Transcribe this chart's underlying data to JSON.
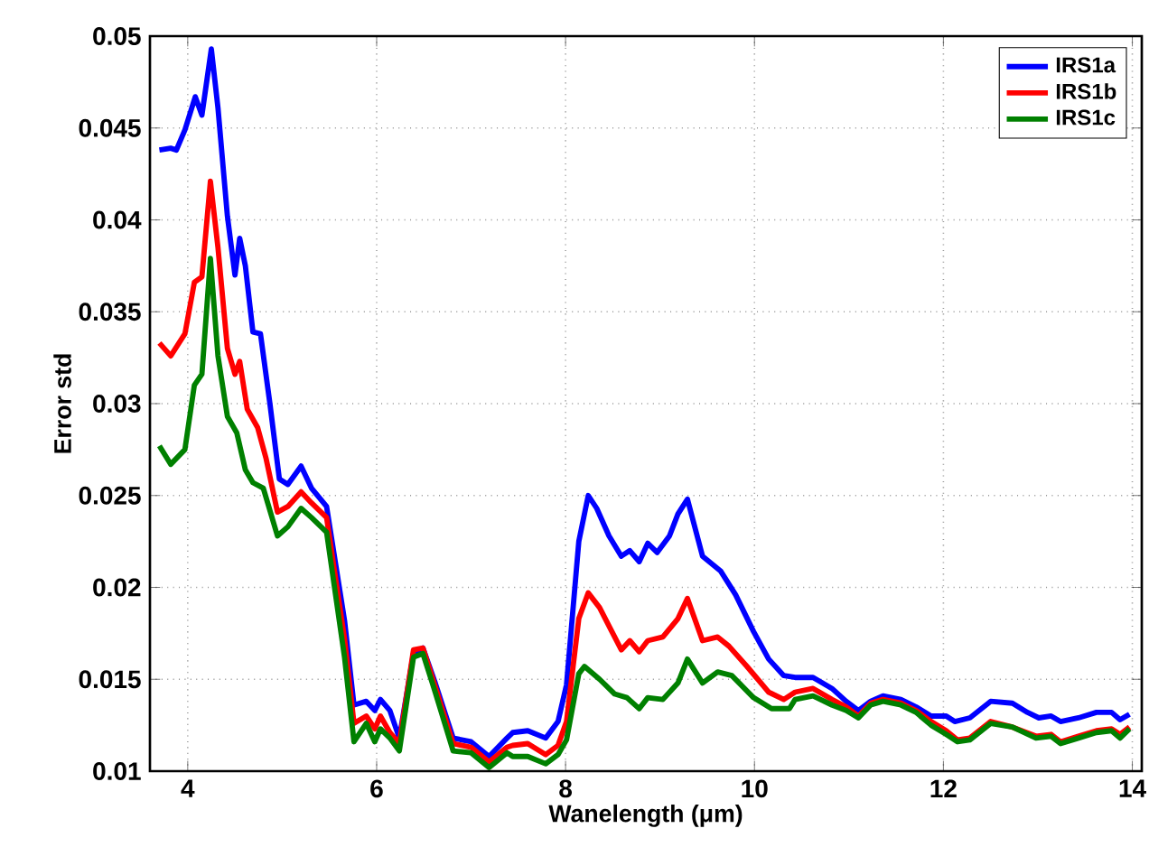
{
  "chart_data": {
    "type": "line",
    "xlabel": "Wanelength (μm)",
    "ylabel": "Error std",
    "xlim": [
      3.6,
      14.1
    ],
    "ylim": [
      0.01,
      0.05
    ],
    "xticks": [
      4,
      6,
      8,
      10,
      12,
      14
    ],
    "yticks": [
      0.01,
      0.015,
      0.02,
      0.025,
      0.03,
      0.035,
      0.04,
      0.045,
      0.05
    ],
    "grid": true,
    "legend": "top right",
    "line_style": "solid",
    "series": [
      {
        "name": "IRS1a",
        "color": "#0000ff",
        "x": [
          3.7,
          3.82,
          3.88,
          3.97,
          4.08,
          4.15,
          4.25,
          4.32,
          4.42,
          4.5,
          4.55,
          4.61,
          4.69,
          4.77,
          4.87,
          4.97,
          5.06,
          5.2,
          5.31,
          5.47,
          5.66,
          5.76,
          5.89,
          5.98,
          6.04,
          6.14,
          6.24,
          6.39,
          6.49,
          6.62,
          6.81,
          7.0,
          7.19,
          7.38,
          7.44,
          7.6,
          7.79,
          7.92,
          8.01,
          8.14,
          8.24,
          8.33,
          8.46,
          8.59,
          8.68,
          8.78,
          8.87,
          8.97,
          9.1,
          9.19,
          9.29,
          9.45,
          9.64,
          9.8,
          9.99,
          10.15,
          10.31,
          10.43,
          10.62,
          10.82,
          10.97,
          11.1,
          11.23,
          11.36,
          11.55,
          11.71,
          11.87,
          12.03,
          12.12,
          12.28,
          12.5,
          12.73,
          12.89,
          13.01,
          13.14,
          13.24,
          13.43,
          13.62,
          13.78,
          13.87,
          13.97
        ],
        "values": [
          0.0438,
          0.0439,
          0.0438,
          0.0449,
          0.0467,
          0.0457,
          0.0493,
          0.0461,
          0.0402,
          0.037,
          0.039,
          0.0375,
          0.0339,
          0.0338,
          0.03,
          0.0259,
          0.0256,
          0.0266,
          0.0254,
          0.0244,
          0.0182,
          0.0136,
          0.0138,
          0.0133,
          0.0139,
          0.0133,
          0.0118,
          0.0164,
          0.0167,
          0.0148,
          0.0118,
          0.0116,
          0.0108,
          0.0118,
          0.0121,
          0.0122,
          0.0118,
          0.0127,
          0.0147,
          0.0225,
          0.025,
          0.0243,
          0.0228,
          0.0217,
          0.022,
          0.0214,
          0.0224,
          0.0219,
          0.0228,
          0.024,
          0.0248,
          0.0217,
          0.0209,
          0.0196,
          0.0176,
          0.0161,
          0.0152,
          0.0151,
          0.0151,
          0.0145,
          0.0138,
          0.0133,
          0.0138,
          0.0141,
          0.0139,
          0.0135,
          0.013,
          0.013,
          0.0127,
          0.0129,
          0.0138,
          0.0137,
          0.0132,
          0.0129,
          0.013,
          0.0127,
          0.0129,
          0.0132,
          0.0132,
          0.0128,
          0.0131
        ]
      },
      {
        "name": "IRS1b",
        "color": "#ff0000",
        "x": [
          3.7,
          3.82,
          3.97,
          4.07,
          4.15,
          4.24,
          4.32,
          4.42,
          4.5,
          4.55,
          4.63,
          4.74,
          4.83,
          4.95,
          5.06,
          5.2,
          5.31,
          5.47,
          5.66,
          5.76,
          5.89,
          5.98,
          6.04,
          6.14,
          6.24,
          6.39,
          6.49,
          6.62,
          6.81,
          7.0,
          7.19,
          7.38,
          7.44,
          7.6,
          7.79,
          7.92,
          8.01,
          8.14,
          8.24,
          8.36,
          8.49,
          8.59,
          8.68,
          8.78,
          8.87,
          9.03,
          9.19,
          9.29,
          9.45,
          9.61,
          9.73,
          9.92,
          10.15,
          10.31,
          10.43,
          10.62,
          10.82,
          10.97,
          11.1,
          11.23,
          11.36,
          11.55,
          11.71,
          11.87,
          12.03,
          12.15,
          12.28,
          12.5,
          12.73,
          12.98,
          13.14,
          13.24,
          13.43,
          13.62,
          13.78,
          13.87,
          13.97
        ],
        "values": [
          0.0333,
          0.0326,
          0.0338,
          0.0366,
          0.0369,
          0.0421,
          0.0385,
          0.033,
          0.0316,
          0.0323,
          0.0297,
          0.0287,
          0.027,
          0.0241,
          0.0244,
          0.0252,
          0.0246,
          0.0238,
          0.0172,
          0.0126,
          0.013,
          0.0123,
          0.013,
          0.0121,
          0.0115,
          0.0166,
          0.0167,
          0.0146,
          0.0115,
          0.0113,
          0.0105,
          0.0113,
          0.0114,
          0.0115,
          0.0109,
          0.0114,
          0.0127,
          0.0183,
          0.0197,
          0.0189,
          0.0176,
          0.0166,
          0.0171,
          0.0165,
          0.0171,
          0.0173,
          0.0183,
          0.0194,
          0.0171,
          0.0173,
          0.0168,
          0.0157,
          0.0143,
          0.0139,
          0.0143,
          0.0145,
          0.0139,
          0.0135,
          0.013,
          0.0137,
          0.0139,
          0.0137,
          0.0133,
          0.0127,
          0.0122,
          0.0117,
          0.0118,
          0.0127,
          0.0124,
          0.0119,
          0.012,
          0.0116,
          0.0119,
          0.0122,
          0.0123,
          0.012,
          0.0124
        ]
      },
      {
        "name": "IRS1c",
        "color": "#008000",
        "x": [
          3.7,
          3.82,
          3.97,
          4.07,
          4.15,
          4.24,
          4.32,
          4.42,
          4.52,
          4.61,
          4.69,
          4.8,
          4.95,
          5.06,
          5.2,
          5.31,
          5.47,
          5.66,
          5.76,
          5.89,
          5.98,
          6.04,
          6.14,
          6.24,
          6.39,
          6.49,
          6.62,
          6.81,
          7.0,
          7.19,
          7.38,
          7.44,
          7.6,
          7.79,
          7.92,
          8.01,
          8.14,
          8.2,
          8.36,
          8.52,
          8.65,
          8.78,
          8.87,
          9.03,
          9.19,
          9.29,
          9.45,
          9.61,
          9.76,
          9.99,
          10.18,
          10.37,
          10.43,
          10.62,
          10.82,
          10.97,
          11.1,
          11.23,
          11.36,
          11.55,
          11.71,
          11.87,
          12.03,
          12.15,
          12.28,
          12.5,
          12.73,
          12.98,
          13.14,
          13.24,
          13.43,
          13.62,
          13.78,
          13.87,
          13.97
        ],
        "values": [
          0.0277,
          0.0267,
          0.0275,
          0.031,
          0.0316,
          0.0379,
          0.0326,
          0.0293,
          0.0284,
          0.0264,
          0.0257,
          0.0254,
          0.0228,
          0.0233,
          0.0243,
          0.0238,
          0.023,
          0.0162,
          0.0116,
          0.0126,
          0.0116,
          0.0123,
          0.0118,
          0.0111,
          0.0162,
          0.0164,
          0.0143,
          0.0111,
          0.011,
          0.0102,
          0.011,
          0.0108,
          0.0108,
          0.0104,
          0.0109,
          0.0117,
          0.0153,
          0.0157,
          0.015,
          0.0142,
          0.014,
          0.0134,
          0.014,
          0.0139,
          0.0148,
          0.0161,
          0.0148,
          0.0154,
          0.0152,
          0.014,
          0.0134,
          0.0134,
          0.0139,
          0.0141,
          0.0136,
          0.0133,
          0.0129,
          0.0136,
          0.0138,
          0.0136,
          0.0132,
          0.0125,
          0.012,
          0.0116,
          0.0117,
          0.0126,
          0.0124,
          0.0118,
          0.0119,
          0.0115,
          0.0118,
          0.0121,
          0.0122,
          0.0118,
          0.0123
        ]
      }
    ]
  }
}
